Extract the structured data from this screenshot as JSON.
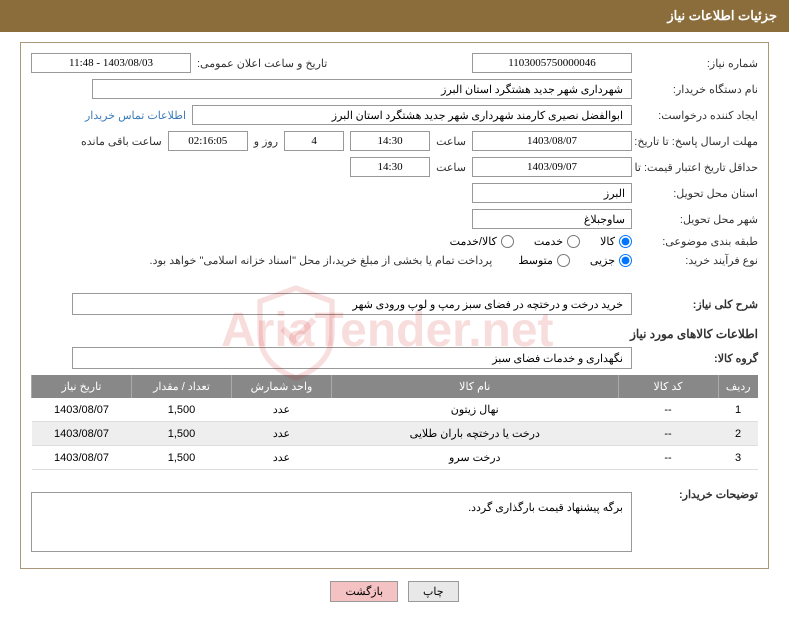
{
  "header": {
    "title": "جزئیات اطلاعات نیاز"
  },
  "fields": {
    "need_number_label": "شماره نیاز:",
    "need_number": "1103005750000046",
    "announce_date_label": "تاریخ و ساعت اعلان عمومی:",
    "announce_date": "1403/08/03 - 11:48",
    "buyer_org_label": "نام دستگاه خریدار:",
    "buyer_org": "شهرداری شهر جدید هشتگرد استان البرز",
    "requester_label": "ایجاد کننده درخواست:",
    "requester": "ابوالفضل نصیری کارمند شهرداری شهر جدید هشتگرد استان البرز",
    "contact_link": "اطلاعات تماس خریدار",
    "response_deadline_label": "مهلت ارسال پاسخ: تا تاریخ:",
    "response_date": "1403/08/07",
    "time_label": "ساعت",
    "response_time": "14:30",
    "days_remaining": "4",
    "days_text": "روز و",
    "time_remaining": "02:16:05",
    "remaining_text": "ساعت باقی مانده",
    "min_validity_label": "حداقل تاریخ اعتبار قیمت: تا تاریخ:",
    "min_validity_date": "1403/09/07",
    "min_validity_time": "14:30",
    "delivery_province_label": "استان محل تحویل:",
    "delivery_province": "البرز",
    "delivery_city_label": "شهر محل تحویل:",
    "delivery_city": "ساوجبلاغ",
    "category_label": "طبقه بندی موضوعی:",
    "radio_goods": "کالا",
    "radio_service": "خدمت",
    "radio_goods_service": "کالا/خدمت",
    "buy_type_label": "نوع فرآیند خرید:",
    "radio_partial": "جزیی",
    "radio_medium": "متوسط",
    "payment_note": "پرداخت تمام یا بخشی از مبلغ خرید،از محل \"اسناد خزانه اسلامی\" خواهد بود.",
    "overview_label": "شرح کلی نیاز:",
    "overview": "خرید درخت و درختچه در فضای سبز رمپ و لوپ ورودی شهر",
    "goods_section": "اطلاعات کالاهای مورد نیاز",
    "goods_group_label": "گروه کالا:",
    "goods_group": "نگهداری و خدمات فضای سبز",
    "buyer_desc_label": "توضیحات خریدار:",
    "buyer_desc": "برگه پیشنهاد قیمت بارگذاری گردد."
  },
  "table": {
    "headers": {
      "idx": "ردیف",
      "code": "کد کالا",
      "name": "نام کالا",
      "unit": "واحد شمارش",
      "qty": "تعداد / مقدار",
      "date": "تاریخ نیاز"
    },
    "rows": [
      {
        "idx": "1",
        "code": "--",
        "name": "نهال زیتون",
        "unit": "عدد",
        "qty": "1,500",
        "date": "1403/08/07"
      },
      {
        "idx": "2",
        "code": "--",
        "name": "درخت یا درختچه باران طلایی",
        "unit": "عدد",
        "qty": "1,500",
        "date": "1403/08/07"
      },
      {
        "idx": "3",
        "code": "--",
        "name": "درخت سرو",
        "unit": "عدد",
        "qty": "1,500",
        "date": "1403/08/07"
      }
    ]
  },
  "buttons": {
    "print": "چاپ",
    "back": "بازگشت"
  },
  "colors": {
    "header_bg": "#8a6d3b",
    "th_bg": "#888888",
    "link": "#3a7ab8",
    "btn_back": "#f4c2c2"
  }
}
